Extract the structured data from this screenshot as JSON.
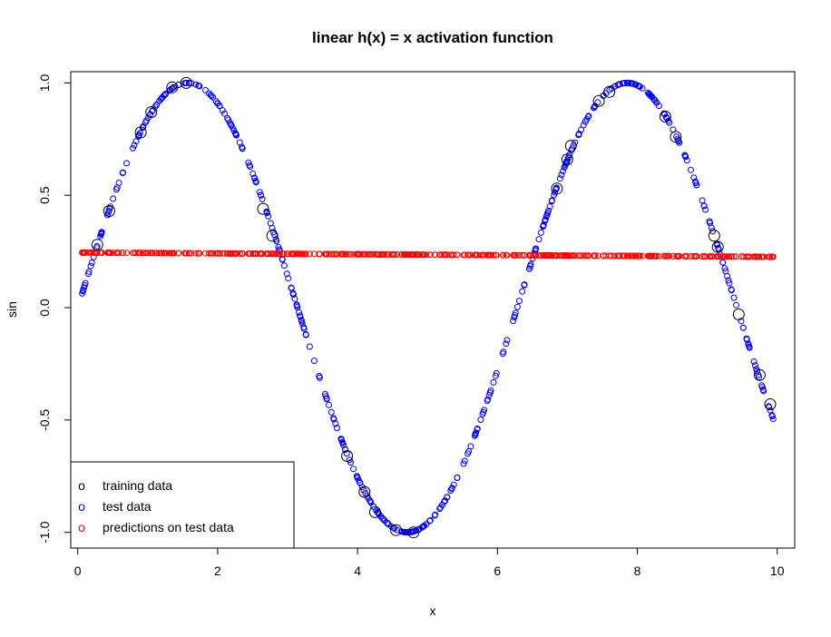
{
  "chart_data": {
    "type": "scatter",
    "title": "linear h(x) = x activation function",
    "xlabel": "x",
    "ylabel": "sin",
    "xlim": [
      -0.1,
      10.25
    ],
    "ylim": [
      -1.07,
      1.05
    ],
    "x_ticks": [
      0,
      2,
      4,
      6,
      8,
      10
    ],
    "x_tick_labels": [
      "0",
      "2",
      "4",
      "6",
      "8",
      "10"
    ],
    "y_ticks": [
      -1.0,
      -0.5,
      0.0,
      0.5,
      1.0
    ],
    "y_tick_labels": [
      "-1.0",
      "-0.5",
      "0.0",
      "0.5",
      "1.0"
    ],
    "grid": false,
    "legend_position": "bottom-left",
    "legend": [
      {
        "marker": "o",
        "label": "training data",
        "color": "#000000"
      },
      {
        "marker": "o",
        "label": "test data",
        "color": "#0000ff"
      },
      {
        "marker": "o",
        "label": "predictions on test data",
        "color": "#ff0000"
      }
    ],
    "series": [
      {
        "name": "training data",
        "color": "#000000",
        "function": "sin(x)",
        "x": [
          0.28,
          0.45,
          0.9,
          1.05,
          1.35,
          1.55,
          2.65,
          2.78,
          3.85,
          4.1,
          4.25,
          4.55,
          4.8,
          6.85,
          7.0,
          7.05,
          7.45,
          7.6,
          8.4,
          8.55,
          9.1,
          9.15,
          9.45,
          9.75,
          9.9
        ],
        "y": [
          0.28,
          0.43,
          0.78,
          0.87,
          0.98,
          1.0,
          0.44,
          0.32,
          -0.66,
          -0.82,
          -0.91,
          -0.99,
          -1.0,
          0.53,
          0.66,
          0.72,
          0.92,
          0.96,
          0.85,
          0.76,
          0.32,
          0.27,
          -0.03,
          -0.3,
          -0.43
        ]
      },
      {
        "name": "test data",
        "color": "#0000ff",
        "function": "sin(x)",
        "x_range": [
          0.02,
          9.97
        ],
        "n": 500
      },
      {
        "name": "predictions on test data",
        "color": "#ff0000",
        "function": "linear",
        "x_range": [
          0.02,
          9.97
        ],
        "y_start": 0.245,
        "y_end": 0.226,
        "n": 500
      }
    ]
  }
}
